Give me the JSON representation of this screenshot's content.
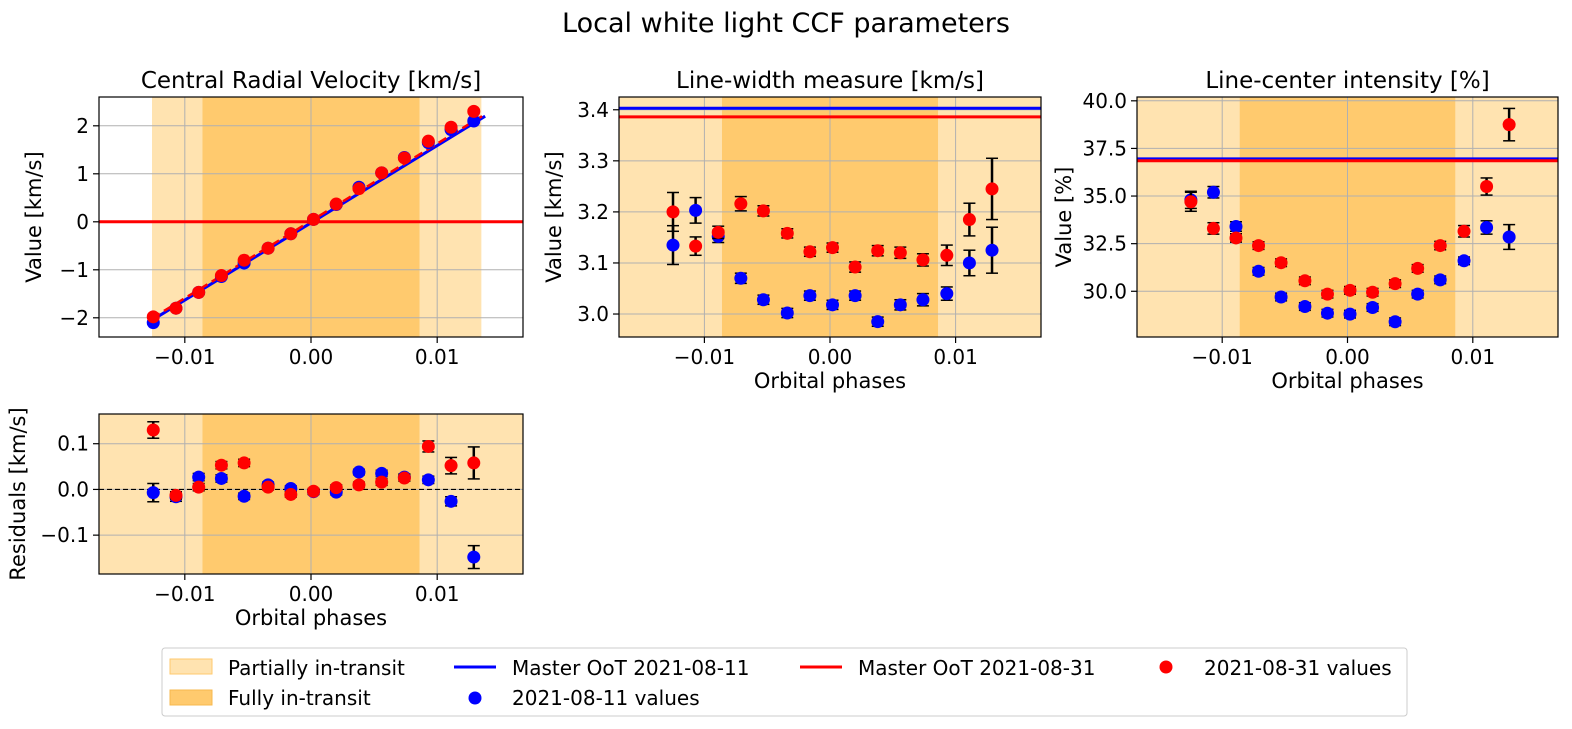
{
  "figure": {
    "title": "Local white light CCF parameters",
    "colors": {
      "partial": "#ffe3b0",
      "full": "#ffca6e",
      "grid": "#b0b0b0",
      "blue": "#0000ff",
      "red": "#ff0000",
      "errbar": "#000000"
    },
    "legend": {
      "partial": "Partially in-transit",
      "full": "Fully in-transit",
      "master1": "Master OoT 2021-08-11",
      "values1": "2021-08-11 values",
      "master2": "Master OoT 2021-08-31",
      "values2": "2021-08-31 values"
    }
  },
  "chart_data": [
    {
      "id": "rv",
      "type": "scatter",
      "title": "Central Radial Velocity [km/s]",
      "xlabel": "",
      "ylabel": "Value [km/s]",
      "xlim": [
        -0.0168,
        0.0168
      ],
      "ylim": [
        -2.4,
        2.6
      ],
      "xticks": [
        -0.01,
        0.0,
        0.01
      ],
      "xtick_labels": [
        "−0.01",
        "0.00",
        "0.01"
      ],
      "yticks": [
        -2,
        -1,
        0,
        1,
        2
      ],
      "ytick_labels": [
        "−2",
        "−1",
        "0",
        "1",
        "2"
      ],
      "grid": true,
      "regions": {
        "partial": [
          -0.0126,
          0.0135
        ],
        "full": [
          -0.0086,
          0.0086
        ]
      },
      "hlines": [
        {
          "y": 0.0,
          "series": "red"
        }
      ],
      "model_line": {
        "x": [
          -0.0126,
          0.0138
        ],
        "y": [
          -2.05,
          2.2
        ]
      },
      "series": [
        {
          "name": "2021-08-11 values",
          "color": "blue",
          "x": [
            -0.0125,
            -0.0107,
            -0.0089,
            -0.0071,
            -0.0053,
            -0.0034,
            -0.0016,
            0.0002,
            0.002,
            0.0038,
            0.0056,
            0.0074,
            0.0093,
            0.0111,
            0.0129
          ],
          "y": [
            -2.1,
            -1.8,
            -1.47,
            -1.14,
            -0.86,
            -0.55,
            -0.25,
            0.05,
            0.36,
            0.72,
            1.02,
            1.34,
            1.65,
            1.92,
            2.1
          ],
          "err": [
            0.03,
            0.03,
            0.03,
            0.03,
            0.03,
            0.03,
            0.03,
            0.03,
            0.03,
            0.03,
            0.03,
            0.03,
            0.03,
            0.03,
            0.03
          ]
        },
        {
          "name": "2021-08-31 values",
          "color": "red",
          "x": [
            -0.0125,
            -0.0107,
            -0.0089,
            -0.0071,
            -0.0053,
            -0.0034,
            -0.0016,
            0.0002,
            0.002,
            0.0038,
            0.0056,
            0.0074,
            0.0093,
            0.0111,
            0.0129
          ],
          "y": [
            -1.98,
            -1.8,
            -1.47,
            -1.12,
            -0.8,
            -0.55,
            -0.25,
            0.05,
            0.37,
            0.69,
            1.02,
            1.33,
            1.68,
            1.97,
            2.3
          ],
          "err": [
            0.03,
            0.03,
            0.03,
            0.03,
            0.03,
            0.03,
            0.03,
            0.03,
            0.03,
            0.03,
            0.03,
            0.03,
            0.03,
            0.03,
            0.03
          ]
        }
      ]
    },
    {
      "id": "fwhm",
      "type": "scatter",
      "title": "Line-width measure [km/s]",
      "xlabel": "Orbital phases",
      "ylabel": "Value [km/s]",
      "xlim": [
        -0.0168,
        0.0168
      ],
      "ylim": [
        2.955,
        3.425
      ],
      "xticks": [
        -0.01,
        0.0,
        0.01
      ],
      "xtick_labels": [
        "−0.01",
        "0.00",
        "0.01"
      ],
      "yticks": [
        3.0,
        3.1,
        3.2,
        3.3,
        3.4
      ],
      "ytick_labels": [
        "3.0",
        "3.1",
        "3.2",
        "3.3",
        "3.4"
      ],
      "grid": true,
      "regions": {
        "partial": [
          -0.0168,
          0.0168
        ],
        "full": [
          -0.0086,
          0.0086
        ]
      },
      "hlines": [
        {
          "y": 3.403,
          "series": "blue"
        },
        {
          "y": 3.386,
          "series": "red"
        }
      ],
      "series": [
        {
          "name": "2021-08-11 values",
          "color": "blue",
          "x": [
            -0.0125,
            -0.0107,
            -0.0089,
            -0.0071,
            -0.0053,
            -0.0034,
            -0.0016,
            0.0002,
            0.002,
            0.0038,
            0.0056,
            0.0074,
            0.0093,
            0.0111,
            0.0129
          ],
          "y": [
            3.135,
            3.203,
            3.152,
            3.07,
            3.028,
            3.002,
            3.036,
            3.018,
            3.036,
            2.985,
            3.018,
            3.028,
            3.04,
            3.1,
            3.125
          ],
          "err": [
            0.038,
            0.025,
            0.012,
            0.01,
            0.009,
            0.009,
            0.009,
            0.009,
            0.009,
            0.009,
            0.01,
            0.012,
            0.013,
            0.025,
            0.045
          ]
        },
        {
          "name": "2021-08-31 values",
          "color": "red",
          "x": [
            -0.0125,
            -0.0107,
            -0.0089,
            -0.0071,
            -0.0053,
            -0.0034,
            -0.0016,
            0.0002,
            0.002,
            0.0038,
            0.0056,
            0.0074,
            0.0093,
            0.0111,
            0.0129
          ],
          "y": [
            3.2,
            3.133,
            3.16,
            3.216,
            3.202,
            3.158,
            3.122,
            3.13,
            3.092,
            3.124,
            3.12,
            3.106,
            3.115,
            3.185,
            3.245
          ],
          "err": [
            0.038,
            0.018,
            0.012,
            0.014,
            0.01,
            0.009,
            0.009,
            0.009,
            0.01,
            0.01,
            0.011,
            0.012,
            0.02,
            0.032,
            0.06
          ]
        }
      ]
    },
    {
      "id": "ctrst",
      "type": "scatter",
      "title": "Line-center intensity [%]",
      "xlabel": "Orbital phases",
      "ylabel": "Value [%]",
      "xlim": [
        -0.0168,
        0.0168
      ],
      "ylim": [
        27.6,
        40.2
      ],
      "xticks": [
        -0.01,
        0.0,
        0.01
      ],
      "xtick_labels": [
        "−0.01",
        "0.00",
        "0.01"
      ],
      "yticks": [
        30.0,
        32.5,
        35.0,
        37.5,
        40.0
      ],
      "ytick_labels": [
        "30.0",
        "32.5",
        "35.0",
        "37.5",
        "40.0"
      ],
      "grid": true,
      "regions": {
        "partial": [
          -0.0168,
          0.0168
        ],
        "full": [
          -0.0086,
          0.0086
        ]
      },
      "hlines": [
        {
          "y": 36.95,
          "series": "blue"
        },
        {
          "y": 36.85,
          "series": "red"
        }
      ],
      "series": [
        {
          "name": "2021-08-11 values",
          "color": "blue",
          "x": [
            -0.0125,
            -0.0107,
            -0.0089,
            -0.0071,
            -0.0053,
            -0.0034,
            -0.0016,
            0.0002,
            0.002,
            0.0038,
            0.0056,
            0.0074,
            0.0093,
            0.0111,
            0.0129
          ],
          "y": [
            34.8,
            35.2,
            33.4,
            31.05,
            29.7,
            29.2,
            28.85,
            28.8,
            29.15,
            28.4,
            29.85,
            30.6,
            31.6,
            33.35,
            32.85
          ],
          "err": [
            0.45,
            0.3,
            0.25,
            0.2,
            0.2,
            0.2,
            0.2,
            0.2,
            0.2,
            0.2,
            0.2,
            0.2,
            0.2,
            0.35,
            0.65
          ]
        },
        {
          "name": "2021-08-31 values",
          "color": "red",
          "x": [
            -0.0125,
            -0.0107,
            -0.0089,
            -0.0071,
            -0.0053,
            -0.0034,
            -0.0016,
            0.0002,
            0.002,
            0.0038,
            0.0056,
            0.0074,
            0.0093,
            0.0111,
            0.0129
          ],
          "y": [
            34.7,
            33.3,
            32.8,
            32.4,
            31.5,
            30.55,
            29.85,
            30.05,
            29.95,
            30.4,
            31.2,
            32.4,
            33.15,
            35.5,
            38.75
          ],
          "err": [
            0.5,
            0.3,
            0.22,
            0.2,
            0.2,
            0.2,
            0.2,
            0.2,
            0.2,
            0.2,
            0.2,
            0.22,
            0.3,
            0.45,
            0.85
          ]
        }
      ]
    },
    {
      "id": "resid",
      "type": "scatter",
      "title": "",
      "xlabel": "Orbital phases",
      "ylabel": "Residuals [km/s]",
      "xlim": [
        -0.0168,
        0.0168
      ],
      "ylim": [
        -0.185,
        0.165
      ],
      "xticks": [
        -0.01,
        0.0,
        0.01
      ],
      "xtick_labels": [
        "−0.01",
        "0.00",
        "0.01"
      ],
      "yticks": [
        -0.1,
        0.0,
        0.1
      ],
      "ytick_labels": [
        "−0.1",
        "0.0",
        "0.1"
      ],
      "grid": true,
      "regions": {
        "partial": [
          -0.0168,
          0.0168
        ],
        "full": [
          -0.0086,
          0.0086
        ]
      },
      "hlines": [
        {
          "y": 0.0,
          "series": "dashed"
        }
      ],
      "series": [
        {
          "name": "2021-08-11 values",
          "color": "blue",
          "x": [
            -0.0125,
            -0.0107,
            -0.0089,
            -0.0071,
            -0.0053,
            -0.0034,
            -0.0016,
            0.0002,
            0.002,
            0.0038,
            0.0056,
            0.0074,
            0.0093,
            0.0111,
            0.0129
          ],
          "y": [
            -0.007,
            -0.016,
            0.027,
            0.024,
            -0.015,
            0.01,
            0.002,
            -0.005,
            -0.006,
            0.038,
            0.035,
            0.027,
            0.021,
            -0.026,
            -0.148
          ],
          "err": [
            0.02,
            0.01,
            0.008,
            0.008,
            0.007,
            0.006,
            0.006,
            0.006,
            0.006,
            0.006,
            0.007,
            0.007,
            0.008,
            0.01,
            0.025
          ]
        },
        {
          "name": "2021-08-31 values",
          "color": "red",
          "x": [
            -0.0125,
            -0.0107,
            -0.0089,
            -0.0071,
            -0.0053,
            -0.0034,
            -0.0016,
            0.0002,
            0.002,
            0.0038,
            0.0056,
            0.0074,
            0.0093,
            0.0111,
            0.0129
          ],
          "y": [
            0.13,
            -0.013,
            0.005,
            0.053,
            0.058,
            0.005,
            -0.011,
            -0.004,
            0.004,
            0.01,
            0.016,
            0.025,
            0.094,
            0.052,
            0.058
          ],
          "err": [
            0.018,
            0.008,
            0.008,
            0.008,
            0.008,
            0.006,
            0.006,
            0.006,
            0.006,
            0.006,
            0.007,
            0.007,
            0.012,
            0.018,
            0.035
          ]
        }
      ]
    }
  ]
}
